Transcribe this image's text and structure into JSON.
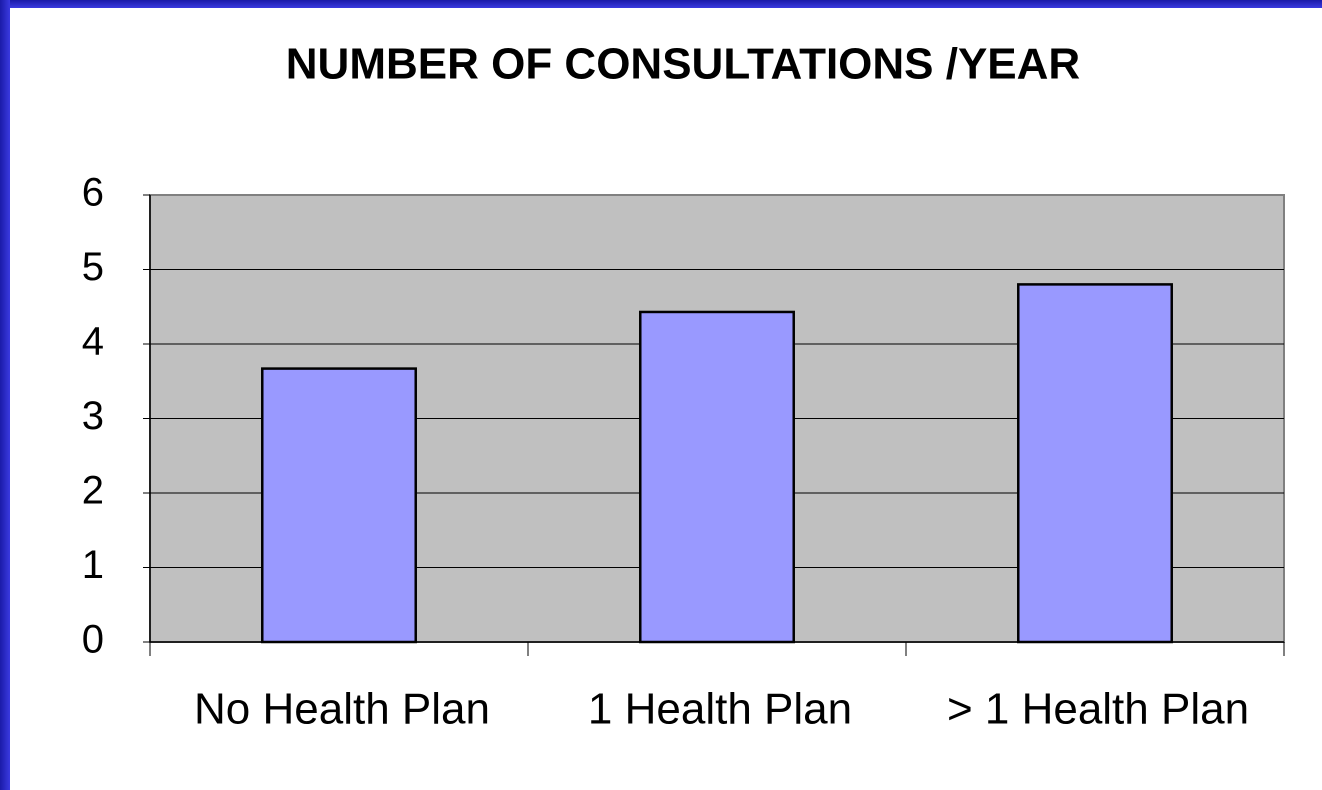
{
  "chart_data": {
    "type": "bar",
    "title": "NUMBER OF CONSULTATIONS /YEAR",
    "categories": [
      "No Health Plan",
      "1 Health Plan",
      "> 1 Health Plan"
    ],
    "values": [
      3.67,
      4.43,
      4.8
    ],
    "color": "#9999ff",
    "ylim": [
      0,
      6
    ],
    "yticks": [
      0,
      1,
      2,
      3,
      4,
      5,
      6
    ],
    "grid": true
  }
}
